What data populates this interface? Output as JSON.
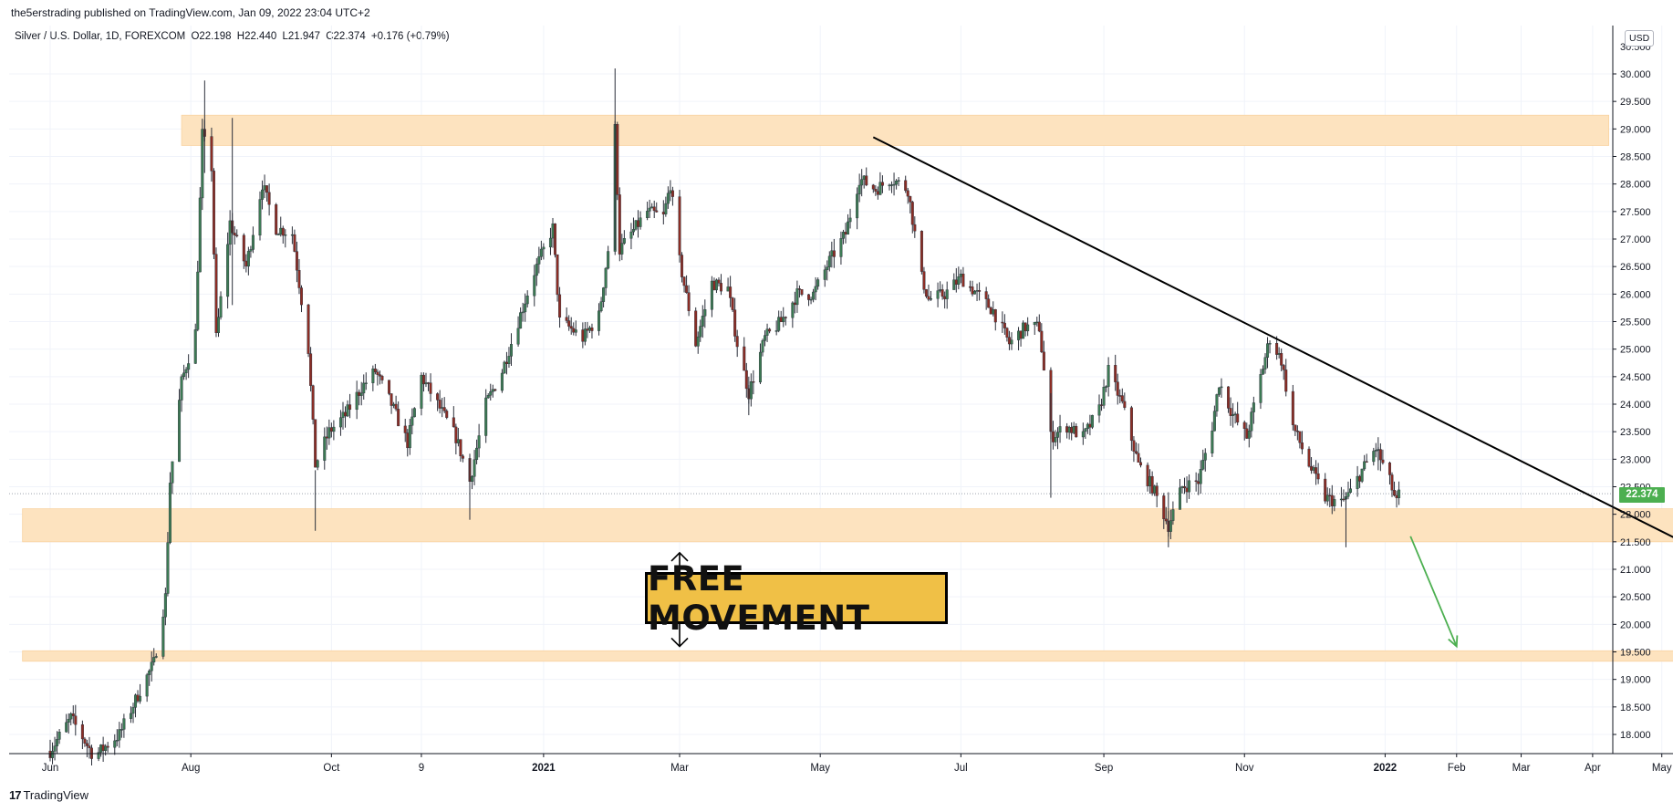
{
  "header": {
    "published": "the5erstrading published on TradingView.com, Jan 09, 2022 23:04 UTC+2"
  },
  "symbol": {
    "name": "Silver / U.S. Dollar, 1D, FOREXCOM",
    "open": "O22.198",
    "high": "H22.440",
    "low": "L21.947",
    "close": "C22.374",
    "change": "+0.176 (+0.79%)"
  },
  "currency": "USD",
  "last_price": "22.374",
  "annotation": {
    "label": "FREE MOVEMENT"
  },
  "brand": {
    "logo": "17",
    "name": "TradingView"
  },
  "colors": {
    "up": "#26a69a",
    "down": "#ef5350",
    "candle_up_body": "#3c7a54",
    "candle_down_body": "#8b2d25",
    "zone": "#fde3bf",
    "last_price": "#4caf50",
    "arrow": "#4caf50",
    "annotation_fill": "#f0c046"
  },
  "chart_data": {
    "type": "candlestick",
    "y_axis": {
      "range": [
        17.5,
        30.5
      ],
      "ticks": [
        "18.000",
        "18.500",
        "19.000",
        "19.500",
        "20.000",
        "20.500",
        "21.000",
        "21.500",
        "22.000",
        "22.500",
        "23.000",
        "23.500",
        "24.000",
        "24.500",
        "25.000",
        "25.500",
        "26.000",
        "26.500",
        "27.000",
        "27.500",
        "28.000",
        "28.500",
        "29.000",
        "29.500",
        "30.000"
      ]
    },
    "x_axis": {
      "ticks": [
        "Jun",
        "Aug",
        "Oct",
        "9",
        "2021",
        "Mar",
        "May",
        "Jul",
        "Sep",
        "Nov",
        "2022",
        "Feb",
        "Mar",
        "Apr",
        "May"
      ],
      "bold": [
        "2021",
        "2022"
      ]
    },
    "path": [
      [
        "2020-06-01",
        17.7
      ],
      [
        "2020-06-10",
        18.3
      ],
      [
        "2020-06-20",
        17.6
      ],
      [
        "2020-07-01",
        18.0
      ],
      [
        "2020-07-10",
        18.8
      ],
      [
        "2020-07-16",
        19.3
      ],
      [
        "2020-07-21",
        20.5
      ],
      [
        "2020-07-23",
        22.6
      ],
      [
        "2020-07-28",
        24.4
      ],
      [
        "2020-08-03",
        25.3
      ],
      [
        "2020-08-06",
        28.9
      ],
      [
        "2020-08-10",
        28.3
      ],
      [
        "2020-08-12",
        25.2
      ],
      [
        "2020-08-18",
        27.3
      ],
      [
        "2020-08-25",
        26.5
      ],
      [
        "2020-09-01",
        28.0
      ],
      [
        "2020-09-07",
        27.2
      ],
      [
        "2020-09-14",
        27.1
      ],
      [
        "2020-09-21",
        25.0
      ],
      [
        "2020-09-24",
        22.9
      ],
      [
        "2020-09-30",
        23.5
      ],
      [
        "2020-10-07",
        23.8
      ],
      [
        "2020-10-14",
        24.3
      ],
      [
        "2020-10-20",
        24.6
      ],
      [
        "2020-10-27",
        24.0
      ],
      [
        "2020-11-03",
        23.3
      ],
      [
        "2020-11-09",
        24.5
      ],
      [
        "2020-11-16",
        24.0
      ],
      [
        "2020-11-24",
        23.4
      ],
      [
        "2020-11-30",
        22.6
      ],
      [
        "2020-12-07",
        24.0
      ],
      [
        "2020-12-14",
        24.6
      ],
      [
        "2020-12-21",
        25.5
      ],
      [
        "2020-12-28",
        26.4
      ],
      [
        "2021-01-05",
        27.2
      ],
      [
        "2021-01-08",
        25.5
      ],
      [
        "2021-01-12",
        25.4
      ],
      [
        "2021-01-18",
        25.2
      ],
      [
        "2021-01-25",
        25.6
      ],
      [
        "2021-01-29",
        26.8
      ],
      [
        "2021-02-01",
        29.0
      ],
      [
        "2021-02-03",
        26.8
      ],
      [
        "2021-02-08",
        27.1
      ],
      [
        "2021-02-15",
        27.5
      ],
      [
        "2021-02-22",
        27.4
      ],
      [
        "2021-02-25",
        28.0
      ],
      [
        "2021-03-01",
        26.6
      ],
      [
        "2021-03-08",
        25.1
      ],
      [
        "2021-03-15",
        26.2
      ],
      [
        "2021-03-22",
        26.1
      ],
      [
        "2021-03-26",
        25.1
      ],
      [
        "2021-03-31",
        24.2
      ],
      [
        "2021-04-07",
        25.2
      ],
      [
        "2021-04-14",
        25.5
      ],
      [
        "2021-04-21",
        26.0
      ],
      [
        "2021-04-28",
        26.0
      ],
      [
        "2021-05-05",
        26.6
      ],
      [
        "2021-05-12",
        27.1
      ],
      [
        "2021-05-18",
        28.1
      ],
      [
        "2021-05-25",
        27.9
      ],
      [
        "2021-06-01",
        28.1
      ],
      [
        "2021-06-08",
        27.9
      ],
      [
        "2021-06-14",
        26.3
      ],
      [
        "2021-06-17",
        25.9
      ],
      [
        "2021-06-24",
        26.0
      ],
      [
        "2021-07-01",
        26.3
      ],
      [
        "2021-07-08",
        26.0
      ],
      [
        "2021-07-15",
        25.7
      ],
      [
        "2021-07-22",
        25.1
      ],
      [
        "2021-07-29",
        25.4
      ],
      [
        "2021-08-04",
        25.4
      ],
      [
        "2021-08-09",
        23.4
      ],
      [
        "2021-08-16",
        23.6
      ],
      [
        "2021-08-23",
        23.4
      ],
      [
        "2021-08-30",
        23.9
      ],
      [
        "2021-09-03",
        24.6
      ],
      [
        "2021-09-09",
        24.0
      ],
      [
        "2021-09-16",
        22.9
      ],
      [
        "2021-09-22",
        22.5
      ],
      [
        "2021-09-29",
        21.8
      ],
      [
        "2021-10-05",
        22.5
      ],
      [
        "2021-10-12",
        22.6
      ],
      [
        "2021-10-18",
        23.6
      ],
      [
        "2021-10-21",
        24.4
      ],
      [
        "2021-10-27",
        23.8
      ],
      [
        "2021-11-02",
        23.4
      ],
      [
        "2021-11-08",
        24.5
      ],
      [
        "2021-11-12",
        25.2
      ],
      [
        "2021-11-17",
        24.8
      ],
      [
        "2021-11-22",
        23.6
      ],
      [
        "2021-11-29",
        22.9
      ],
      [
        "2021-12-06",
        22.3
      ],
      [
        "2021-12-13",
        22.2
      ],
      [
        "2021-12-17",
        22.4
      ],
      [
        "2021-12-22",
        22.8
      ],
      [
        "2021-12-28",
        23.2
      ],
      [
        "2022-01-03",
        22.6
      ],
      [
        "2022-01-06",
        22.2
      ],
      [
        "2022-01-07",
        22.37
      ]
    ],
    "spikes": [
      [
        "2020-08-07",
        29.88,
        28.2
      ],
      [
        "2020-08-19",
        29.2,
        25.8
      ],
      [
        "2020-09-24",
        22.8,
        21.7
      ],
      [
        "2020-11-30",
        23.1,
        21.9
      ],
      [
        "2021-02-01",
        30.1,
        26.8
      ],
      [
        "2021-03-31",
        24.5,
        23.8
      ],
      [
        "2021-08-09",
        24.2,
        22.3
      ],
      [
        "2021-09-29",
        22.4,
        21.4
      ],
      [
        "2021-12-15",
        22.3,
        21.4
      ],
      [
        "2021-12-29",
        23.4,
        22.8
      ]
    ],
    "last_price": 22.374,
    "zones": [
      {
        "from": "2020-07-28",
        "to": "2022-04-08",
        "low": 28.7,
        "high": 29.25
      },
      {
        "from": "2020-05-20",
        "to": "2022-05-20",
        "low": 21.5,
        "high": 22.1
      },
      {
        "from": "2020-05-20",
        "to": "2022-06-10",
        "low": 19.33,
        "high": 19.52
      }
    ],
    "trendline": {
      "from": [
        "2021-05-24",
        28.85
      ],
      "to": [
        "2022-06-10",
        20.85
      ]
    },
    "range_arrow": {
      "date": "2021-03-01",
      "from": 21.3,
      "to": 19.6
    },
    "target_arrow": {
      "from": [
        "2022-01-12",
        21.6
      ],
      "to": [
        "2022-02-01",
        19.6
      ]
    }
  }
}
